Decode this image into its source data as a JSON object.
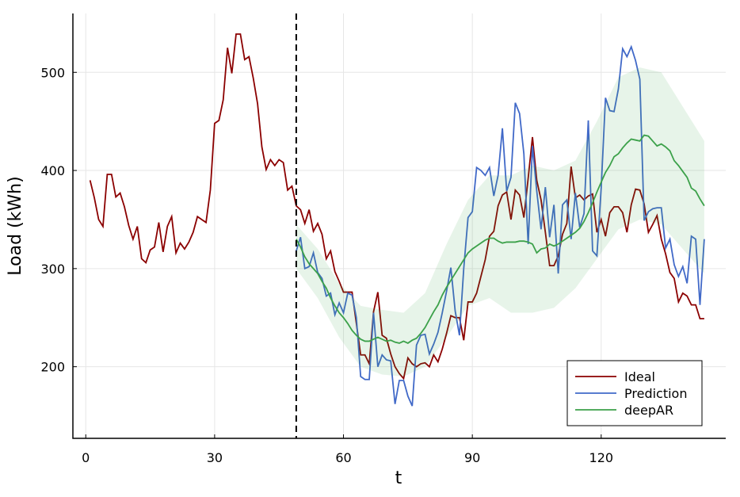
{
  "chart_data": {
    "type": "line",
    "xlabel": "t",
    "ylabel": "Load (kWh)",
    "xlim": [
      -3,
      149
    ],
    "ylim": [
      127,
      560
    ],
    "xticks": [
      0,
      30,
      60,
      90,
      120
    ],
    "yticks": [
      200,
      300,
      400,
      500
    ],
    "grid": true,
    "legend": "lower right",
    "vline": 49,
    "series": [
      {
        "name": "Ideal",
        "color": "#8b0000",
        "x_start": 1,
        "values": [
          390,
          372,
          350,
          343,
          396,
          396,
          373,
          377,
          363,
          344,
          330,
          343,
          310,
          306,
          319,
          322,
          347,
          317,
          343,
          353,
          316,
          326,
          320,
          327,
          337,
          353,
          350,
          347,
          380,
          448,
          451,
          472,
          525,
          499,
          539,
          539,
          513,
          516,
          494,
          468,
          424,
          401,
          411,
          405,
          411,
          408,
          380,
          384,
          364,
          360,
          346,
          360,
          338,
          346,
          335,
          310,
          318,
          297,
          287,
          276,
          276,
          276,
          244,
          212,
          212,
          203,
          256,
          276,
          232,
          229,
          213,
          200,
          193,
          188,
          209,
          203,
          200,
          203,
          204,
          200,
          212,
          205,
          218,
          234,
          252,
          250,
          250,
          227,
          266,
          266,
          275,
          292,
          309,
          333,
          338,
          364,
          375,
          378,
          350,
          380,
          375,
          352,
          392,
          434,
          390,
          370,
          337,
          303,
          303,
          313,
          335,
          346,
          404,
          372,
          375,
          370,
          374,
          376,
          337,
          350,
          333,
          357,
          363,
          363,
          357,
          337,
          365,
          381,
          380,
          366,
          337,
          345,
          354,
          330,
          315,
          296,
          290,
          266,
          275,
          272,
          263,
          263,
          249,
          249
        ]
      },
      {
        "name": "Prediction",
        "color": "#4169c8",
        "x_start": 49,
        "values": [
          318,
          332,
          300,
          302,
          316,
          296,
          290,
          272,
          275,
          253,
          265,
          255,
          275,
          273,
          250,
          190,
          187,
          187,
          255,
          200,
          212,
          207,
          206,
          162,
          186,
          186,
          170,
          160,
          222,
          232,
          233,
          213,
          223,
          235,
          255,
          277,
          301,
          257,
          232,
          300,
          352,
          358,
          403,
          400,
          395,
          403,
          374,
          395,
          443,
          379,
          393,
          469,
          458,
          417,
          325,
          425,
          379,
          340,
          383,
          332,
          365,
          295,
          365,
          370,
          330,
          377,
          342,
          356,
          451,
          318,
          313,
          382,
          474,
          461,
          460,
          483,
          524,
          516,
          526,
          512,
          493,
          349,
          358,
          361,
          362,
          362,
          321,
          330,
          304,
          292,
          302,
          285,
          333,
          330,
          263,
          330
        ]
      },
      {
        "name": "deepAR",
        "color": "#3ca14a",
        "x_start": 49,
        "values": [
          330,
          322,
          312,
          305,
          300,
          295,
          287,
          280,
          270,
          262,
          255,
          250,
          244,
          237,
          232,
          228,
          226,
          226,
          228,
          230,
          228,
          226,
          227,
          225,
          224,
          226,
          224,
          227,
          229,
          234,
          240,
          248,
          256,
          263,
          273,
          281,
          288,
          295,
          302,
          309,
          316,
          320,
          323,
          326,
          329,
          331,
          331,
          328,
          326,
          327,
          327,
          327,
          328,
          328,
          327,
          325,
          316,
          320,
          321,
          325,
          323,
          325,
          328,
          331,
          334,
          337,
          341,
          348,
          357,
          367,
          378,
          388,
          398,
          405,
          414,
          417,
          423,
          428,
          432,
          431,
          430,
          436,
          435,
          430,
          425,
          427,
          424,
          420,
          410,
          405,
          399,
          393,
          382,
          379,
          371,
          364
        ],
        "band": {
          "x": [
            49,
            54,
            59,
            64,
            69,
            74,
            79,
            84,
            89,
            94,
            99,
            104,
            109,
            114,
            119,
            124,
            129,
            134,
            139,
            144
          ],
          "lower": [
            300,
            270,
            230,
            200,
            192,
            190,
            200,
            230,
            262,
            270,
            255,
            255,
            260,
            280,
            310,
            340,
            350,
            345,
            320,
            295
          ],
          "upper": [
            345,
            320,
            285,
            262,
            258,
            255,
            275,
            325,
            370,
            395,
            395,
            405,
            400,
            410,
            450,
            495,
            505,
            500,
            465,
            430
          ]
        }
      }
    ]
  }
}
